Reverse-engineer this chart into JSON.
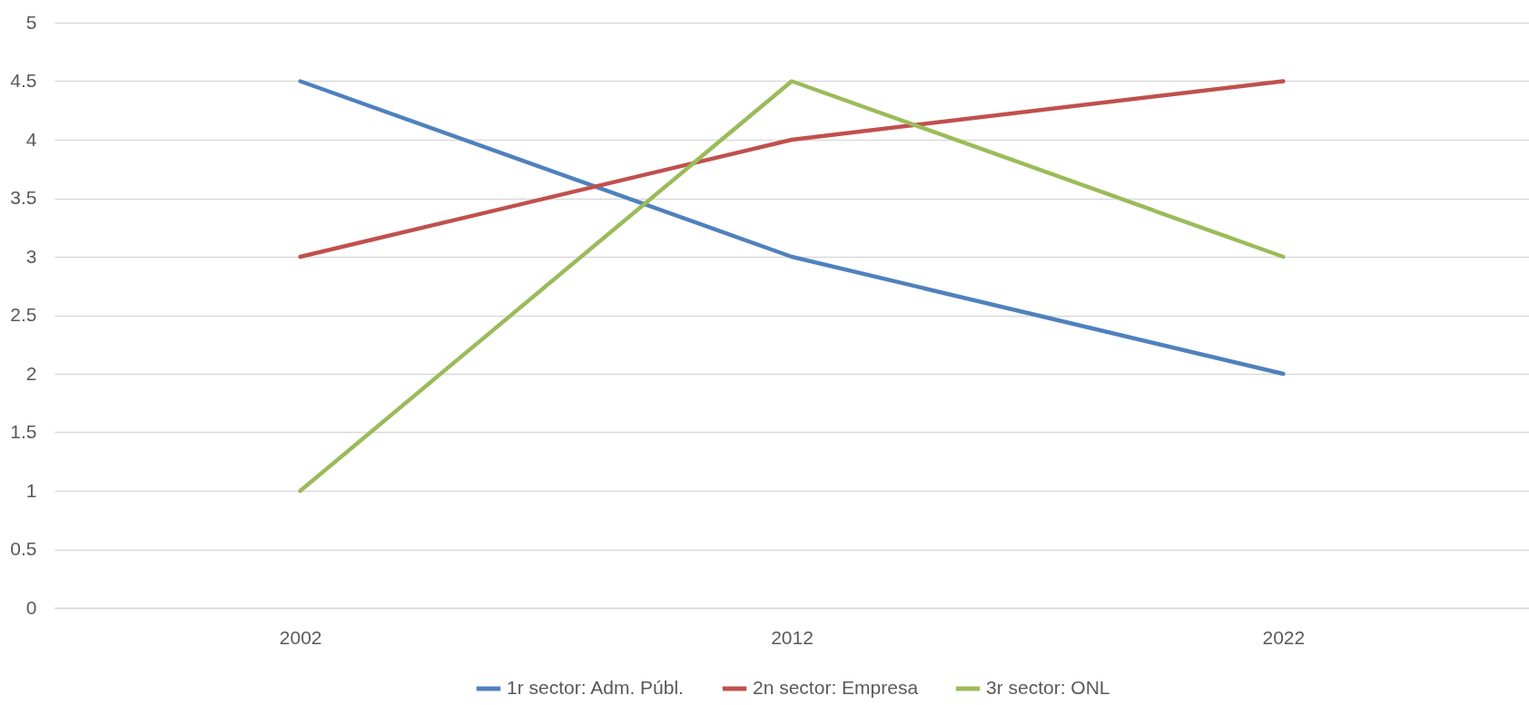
{
  "chart_data": {
    "type": "line",
    "categories": [
      "2002",
      "2012",
      "2022"
    ],
    "series": [
      {
        "name": "1r sector: Adm. Públ.",
        "color": "#4f81bd",
        "values": [
          4.5,
          3,
          2
        ]
      },
      {
        "name": "2n sector: Empresa",
        "color": "#c0504d",
        "values": [
          3,
          4,
          4.5
        ]
      },
      {
        "name": "3r sector: ONL",
        "color": "#9bbb59",
        "values": [
          1,
          4.5,
          3
        ]
      }
    ],
    "ylim": [
      0,
      5
    ],
    "yticks": [
      0,
      0.5,
      1,
      1.5,
      2,
      2.5,
      3,
      3.5,
      4,
      4.5,
      5
    ],
    "grid": "y",
    "legend": "bottom"
  }
}
